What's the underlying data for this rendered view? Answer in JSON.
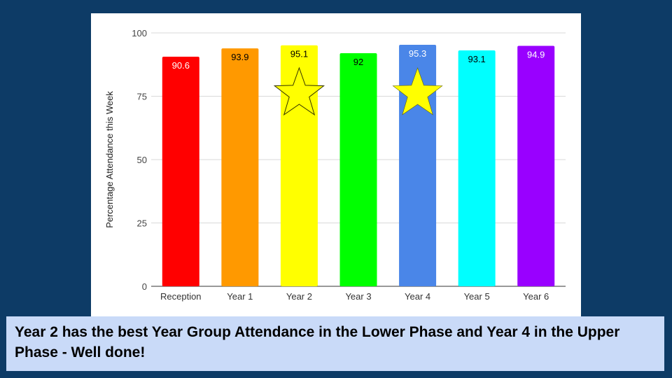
{
  "chart_data": {
    "type": "bar",
    "categories": [
      "Reception",
      "Year 1",
      "Year 2",
      "Year 3",
      "Year 4",
      "Year 5",
      "Year 6"
    ],
    "values": [
      90.6,
      93.9,
      95.1,
      92,
      95.3,
      93.1,
      94.9
    ],
    "value_labels": [
      "90.6",
      "93.9",
      "95.1",
      "92",
      "95.3",
      "93.1",
      "94.9"
    ],
    "bar_colors": [
      "#ff0000",
      "#ff9900",
      "#ffff00",
      "#00ff00",
      "#4a86e8",
      "#00ffff",
      "#9900ff"
    ],
    "label_colors": [
      "#ffffff",
      "#000000",
      "#000000",
      "#000000",
      "#ffffff",
      "#000000",
      "#ffffff"
    ],
    "ylabel": "Percentage Attendance this Week",
    "xlabel": "",
    "ylim": [
      0,
      100
    ],
    "yticks": [
      "0",
      "25",
      "50",
      "75",
      "100"
    ],
    "grid": true,
    "legend": "none",
    "stars": [
      {
        "category": "Year 2",
        "style": "outline",
        "color": "#ffff00"
      },
      {
        "category": "Year 4",
        "style": "filled",
        "color": "#ffff00"
      }
    ]
  },
  "caption": "Year 2 has the best Year Group Attendance in the Lower Phase and Year 4 in the Upper Phase - Well done!",
  "colors": {
    "background": "#0d3b66",
    "caption_box": "#c9daf8",
    "grid": "#d9d9d9",
    "axis": "#333333"
  }
}
